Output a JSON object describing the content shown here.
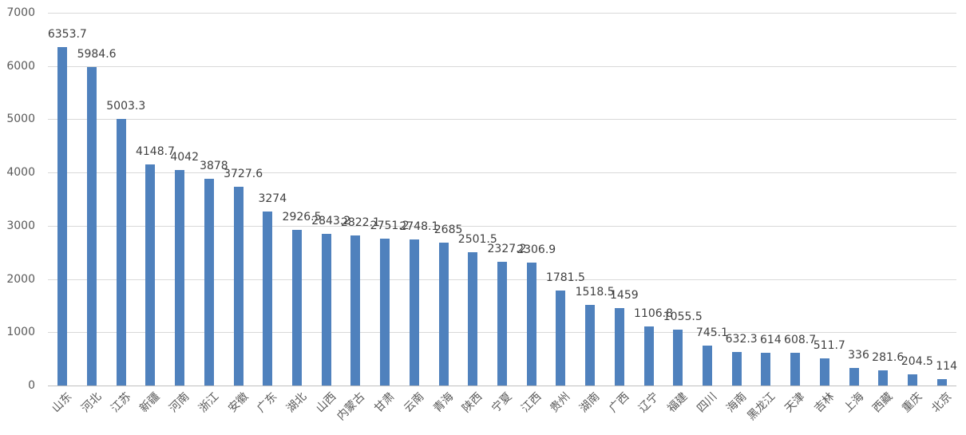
{
  "chart_data": {
    "type": "bar",
    "title": "",
    "xlabel": "",
    "ylabel": "",
    "ylim": [
      0,
      7000
    ],
    "yticks": [
      0,
      1000,
      2000,
      3000,
      4000,
      5000,
      6000,
      7000
    ],
    "grid": true,
    "legend": "none",
    "bar_color": "#4f81bd",
    "categories": [
      "山东",
      "河北",
      "江苏",
      "新疆",
      "河南",
      "浙江",
      "安徽",
      "广东",
      "湖北",
      "山西",
      "内蒙古",
      "甘肃",
      "云南",
      "青海",
      "陕西",
      "宁夏",
      "江西",
      "贵州",
      "湖南",
      "广西",
      "辽宁",
      "福建",
      "四川",
      "海南",
      "黑龙江",
      "天津",
      "吉林",
      "上海",
      "西藏",
      "重庆",
      "北京"
    ],
    "values": [
      6353.7,
      5984.6,
      5003.3,
      4148.7,
      4042,
      3878,
      3727.6,
      3274,
      2926.5,
      2843.2,
      2822.1,
      2751.2,
      2748.1,
      2685,
      2501.5,
      2327.2,
      2306.9,
      1781.5,
      1518.5,
      1459,
      1106.8,
      1055.5,
      745.1,
      632.3,
      614,
      608.7,
      511.7,
      336,
      281.6,
      204.5,
      114
    ],
    "data_labels": [
      "6353.7",
      "5984.6",
      "5003.3",
      "4148.7",
      "4042",
      "3878",
      "3727.6",
      "3274",
      "2926.5",
      "2843.2",
      "2822.1",
      "2751.2",
      "2748.1",
      "2685",
      "2501.5",
      "2327.2",
      "2306.9",
      "1781.5",
      "1518.5",
      "1459",
      "1106.8",
      "1055.5",
      "745.1",
      "632.3",
      "614",
      "608.7",
      "511.7",
      "336",
      "281.6",
      "204.5",
      "114"
    ]
  }
}
